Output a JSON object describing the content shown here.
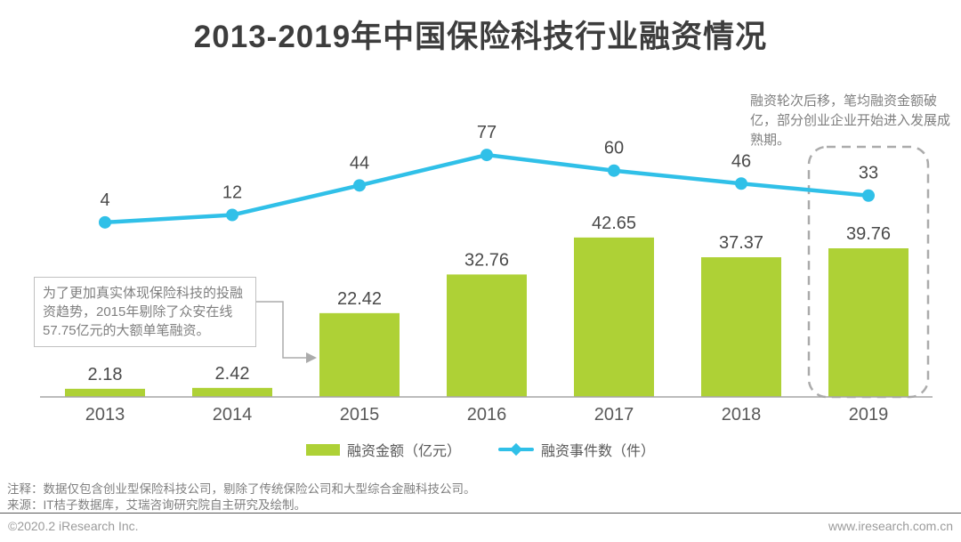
{
  "title": "2013-2019年中国保险科技行业融资情况",
  "colors": {
    "bar": "#AED136",
    "line": "#30C0E8",
    "value_label": "#4a4a4a",
    "axis": "#a6a6a6",
    "year_label": "#595959",
    "dashed_box": "#ababab",
    "connector": "#ababab"
  },
  "chart_data": {
    "type": "bar",
    "subtype": "bar+line combo",
    "title": "2013-2019年中国保险科技行业融资情况",
    "categories": [
      "2013",
      "2014",
      "2015",
      "2016",
      "2017",
      "2018",
      "2019"
    ],
    "series": [
      {
        "name": "融资金额（亿元）",
        "type": "bar",
        "values": [
          2.18,
          2.42,
          22.42,
          32.76,
          42.65,
          37.37,
          39.76
        ],
        "labels": [
          "2.18",
          "2.42",
          "22.42",
          "32.76",
          "42.65",
          "37.37",
          "39.76"
        ],
        "color": "#AED136"
      },
      {
        "name": "融资事件数（件）",
        "type": "line",
        "values": [
          4,
          12,
          44,
          77,
          60,
          46,
          33
        ],
        "labels": [
          "4",
          "12",
          "44",
          "77",
          "60",
          "46",
          "33"
        ],
        "color": "#30C0E8"
      }
    ],
    "highlight_category": "2019",
    "legend_position": "bottom",
    "gridlines": false,
    "axes_hidden": true,
    "xlabel": "",
    "ylabel": ""
  },
  "annotations": {
    "top_right": "融资轮次后移，笔均融资金额破亿，部分创业企业开始进入发展成熟期。",
    "callout": "为了更加真实体现保险科技的投融资趋势，2015年剔除了众安在线57.75亿元的大额单笔融资。",
    "callout_target": "2015"
  },
  "legend": [
    {
      "label": "融资金额（亿元）",
      "marker": "bar-swatch",
      "color": "#AED136"
    },
    {
      "label": "融资事件数（件）",
      "marker": "line-diamond",
      "color": "#30C0E8"
    }
  ],
  "notes": {
    "note_line": "注释：数据仅包含创业型保险科技公司，剔除了传统保险公司和大型综合金融科技公司。",
    "source_line": "来源：IT桔子数据库，艾瑞咨询研究院自主研究及绘制。"
  },
  "footer": {
    "left": "©2020.2 iResearch Inc.",
    "right": "www.iresearch.com.cn"
  }
}
